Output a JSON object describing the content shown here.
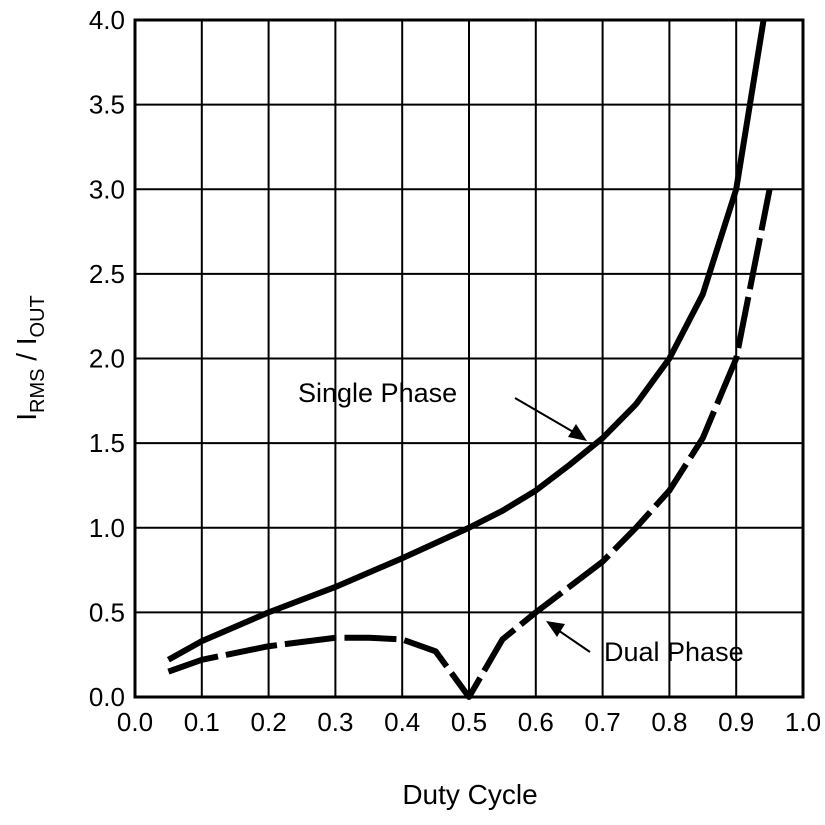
{
  "chart_data": {
    "type": "line",
    "xlabel": "Duty Cycle",
    "ylabel": {
      "main1": "I",
      "sub1": "RMS",
      "mid": " / I",
      "sub2": "OUT"
    },
    "xlim": [
      0.0,
      1.0
    ],
    "ylim": [
      0.0,
      4.0
    ],
    "grid": true,
    "xticks": [
      "0.0",
      "0.1",
      "0.2",
      "0.3",
      "0.4",
      "0.5",
      "0.6",
      "0.7",
      "0.8",
      "0.9",
      "1.0"
    ],
    "yticks": [
      "0.0",
      "0.5",
      "1.0",
      "1.5",
      "2.0",
      "2.5",
      "3.0",
      "3.5",
      "4.0"
    ],
    "series": [
      {
        "name": "Single Phase",
        "style": "solid",
        "x": [
          0.05,
          0.1,
          0.2,
          0.3,
          0.4,
          0.5,
          0.55,
          0.6,
          0.65,
          0.7,
          0.75,
          0.8,
          0.85,
          0.9,
          0.941
        ],
        "y": [
          0.22,
          0.33,
          0.5,
          0.65,
          0.82,
          1.0,
          1.1,
          1.22,
          1.37,
          1.53,
          1.73,
          2.0,
          2.38,
          3.0,
          4.0
        ]
      },
      {
        "name": "Dual Phase",
        "style": "dashed",
        "x": [
          0.05,
          0.1,
          0.2,
          0.3,
          0.35,
          0.4,
          0.45,
          0.5,
          0.55,
          0.6,
          0.7,
          0.75,
          0.8,
          0.85,
          0.9,
          0.95
        ],
        "y": [
          0.15,
          0.22,
          0.3,
          0.35,
          0.35,
          0.34,
          0.27,
          0.0,
          0.34,
          0.5,
          0.8,
          1.0,
          1.22,
          1.53,
          2.0,
          3.0
        ]
      }
    ],
    "color": "#000000"
  }
}
